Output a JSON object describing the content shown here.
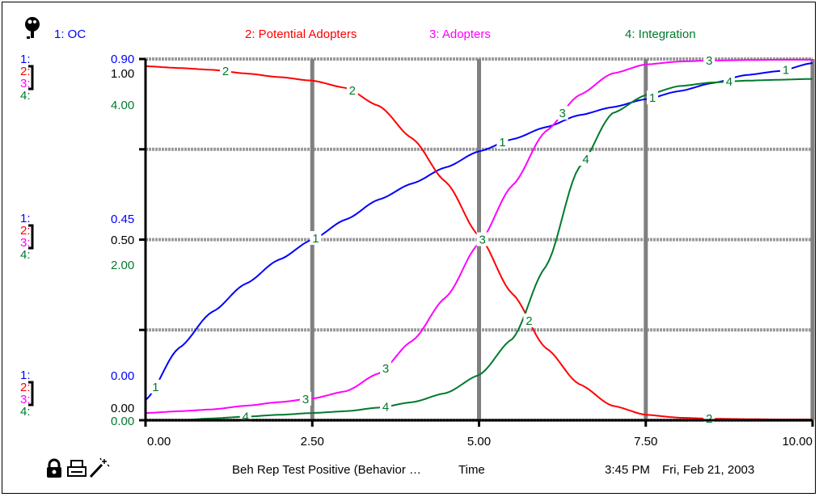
{
  "header": {
    "legend": [
      {
        "key": "oc",
        "label": "1: OC",
        "color": "#0000ff"
      },
      {
        "key": "pa",
        "label": "2: Potential Adopters",
        "color": "#ff0000"
      },
      {
        "key": "ad",
        "label": "3: Adopters",
        "color": "#ff00ff"
      },
      {
        "key": "in",
        "label": "4: Integration",
        "color": "#007a2e"
      }
    ]
  },
  "footer": {
    "title": "Beh Rep Test Positive (Behavior …",
    "xaxis_label": "Time",
    "time": "3:45 PM",
    "date": "Fri, Feb 21, 2003"
  },
  "icons": [
    "pin-icon",
    "lock-icon",
    "print-icon",
    "magic-wand-icon"
  ],
  "chart_data": {
    "type": "line",
    "xlabel": "Time",
    "xlim": [
      0,
      10
    ],
    "x_ticks": [
      "0.00",
      "2.50",
      "5.00",
      "7.50",
      "10.00"
    ],
    "grid": true,
    "y_scale_groups": [
      {
        "level": "top",
        "labels": [
          "1:",
          "2:",
          "3:",
          "4:"
        ],
        "values": [
          "0.90",
          "1.00",
          "",
          "4.00"
        ]
      },
      {
        "level": "mid",
        "labels": [
          "1:",
          "2:",
          "3:",
          "4:"
        ],
        "values": [
          "0.45",
          "0.50",
          "",
          "2.00"
        ]
      },
      {
        "level": "bottom",
        "labels": [
          "1:",
          "2:",
          "3:",
          "4:"
        ],
        "values": [
          "0.00",
          "",
          "0.00",
          "0.00"
        ]
      }
    ],
    "x": [
      0,
      0.5,
      1,
      1.5,
      2,
      2.5,
      3,
      3.5,
      4,
      4.5,
      5,
      5.5,
      6,
      6.5,
      7,
      7.5,
      8,
      8.5,
      9,
      9.5,
      10
    ],
    "series": [
      {
        "id": "1",
        "name": "1: OC",
        "color": "#0000ff",
        "ylim": [
          0,
          0.9
        ],
        "values": [
          0.05,
          0.18,
          0.27,
          0.34,
          0.4,
          0.45,
          0.5,
          0.55,
          0.59,
          0.63,
          0.67,
          0.7,
          0.73,
          0.76,
          0.78,
          0.8,
          0.82,
          0.84,
          0.86,
          0.87,
          0.89
        ]
      },
      {
        "id": "2",
        "name": "2: Potential Adopters",
        "color": "#ff0000",
        "ylim": [
          0,
          1.0
        ],
        "values": [
          0.98,
          0.975,
          0.97,
          0.96,
          0.95,
          0.94,
          0.92,
          0.87,
          0.78,
          0.66,
          0.51,
          0.35,
          0.2,
          0.1,
          0.04,
          0.015,
          0.007,
          0.004,
          0.003,
          0.002,
          0.002
        ]
      },
      {
        "id": "3",
        "name": "3: Adopters",
        "color": "#ff00ff",
        "ylim": [
          0,
          1.0
        ],
        "values": [
          0.02,
          0.025,
          0.03,
          0.04,
          0.05,
          0.06,
          0.08,
          0.13,
          0.22,
          0.34,
          0.49,
          0.65,
          0.8,
          0.9,
          0.96,
          0.985,
          0.993,
          0.996,
          0.997,
          0.998,
          0.998
        ]
      },
      {
        "id": "4",
        "name": "4: Integration",
        "color": "#007a2e",
        "ylim": [
          0,
          4.0
        ],
        "values": [
          0.0,
          0.0,
          0.02,
          0.04,
          0.06,
          0.08,
          0.1,
          0.14,
          0.2,
          0.3,
          0.5,
          0.9,
          1.7,
          2.8,
          3.4,
          3.6,
          3.7,
          3.74,
          3.76,
          3.77,
          3.78
        ]
      }
    ]
  }
}
